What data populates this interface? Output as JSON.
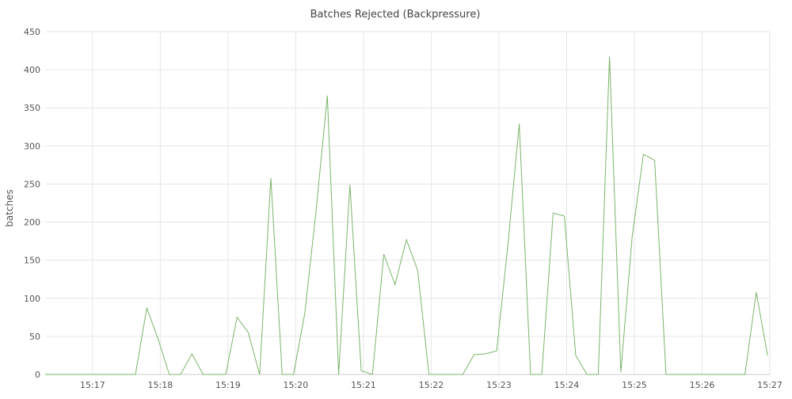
{
  "chart_data": {
    "type": "line",
    "title": "Batches Rejected (Backpressure)",
    "xlabel": "",
    "ylabel": "batches",
    "ylim": [
      0,
      450
    ],
    "yticks": [
      0,
      50,
      100,
      150,
      200,
      250,
      300,
      350,
      400,
      450
    ],
    "xlim": [
      "15:16:18",
      "15:27:00"
    ],
    "xticks": [
      "15:17",
      "15:18",
      "15:19",
      "15:20",
      "15:21",
      "15:22",
      "15:23",
      "15:24",
      "15:25",
      "15:26",
      "15:27"
    ],
    "grid": true,
    "legend": "none",
    "series": [
      {
        "color": "#7cb46b",
        "x": [
          "15:16:18",
          "15:16:28",
          "15:16:38",
          "15:16:48",
          "15:16:58",
          "15:17:08",
          "15:17:18",
          "15:17:28",
          "15:17:38",
          "15:17:48",
          "15:17:58",
          "15:18:08",
          "15:18:18",
          "15:18:28",
          "15:18:38",
          "15:18:48",
          "15:18:58",
          "15:19:08",
          "15:19:18",
          "15:19:28",
          "15:19:38",
          "15:19:48",
          "15:19:58",
          "15:20:08",
          "15:20:18",
          "15:20:28",
          "15:20:38",
          "15:20:48",
          "15:20:58",
          "15:21:08",
          "15:21:18",
          "15:21:28",
          "15:21:38",
          "15:21:48",
          "15:21:58",
          "15:22:08",
          "15:22:18",
          "15:22:28",
          "15:22:38",
          "15:22:48",
          "15:22:58",
          "15:23:08",
          "15:23:18",
          "15:23:28",
          "15:23:38",
          "15:23:48",
          "15:23:58",
          "15:24:08",
          "15:24:18",
          "15:24:28",
          "15:24:38",
          "15:24:48",
          "15:24:58",
          "15:25:08",
          "15:25:18",
          "15:25:28",
          "15:25:38",
          "15:25:48",
          "15:25:58",
          "15:26:08",
          "15:26:18",
          "15:26:28",
          "15:26:38",
          "15:26:48",
          "15:26:58"
        ],
        "values": [
          0,
          0,
          0,
          0,
          0,
          0,
          0,
          0,
          0,
          87,
          47,
          0,
          0,
          27,
          0,
          0,
          0,
          75,
          55,
          0,
          258,
          0,
          0,
          80,
          215,
          366,
          0,
          249,
          5,
          0,
          158,
          118,
          177,
          137,
          0,
          0,
          0,
          0,
          26,
          27,
          31,
          170,
          329,
          0,
          0,
          212,
          208,
          25,
          0,
          0,
          417,
          3,
          180,
          289,
          281,
          0,
          0,
          0,
          0,
          0,
          0,
          0,
          0,
          108,
          25
        ]
      }
    ]
  }
}
